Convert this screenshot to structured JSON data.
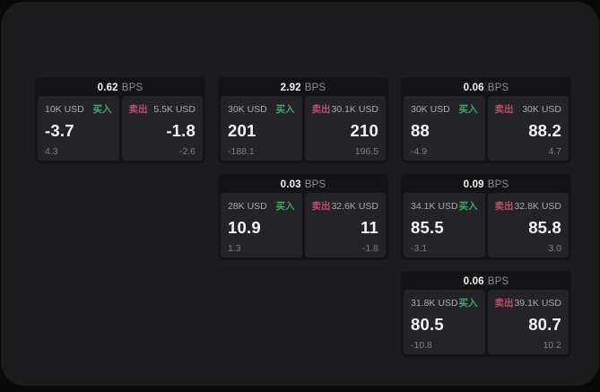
{
  "labels": {
    "buy": "买入",
    "sell": "卖出",
    "bps_unit": "BPS"
  },
  "colors": {
    "buy_green": "#3ca96a",
    "sell_red": "#c04e68",
    "panel_bg": "#1c1c1e",
    "card_bg": "#141416",
    "subpanel_bg": "#242428"
  },
  "cards": [
    {
      "bps": "0.62",
      "col": 1,
      "row": 1,
      "buy": {
        "size": "10K USD",
        "value": "-3.7",
        "sub": "4.3"
      },
      "sell": {
        "size": "5.5K USD",
        "value": "-1.8",
        "sub": "-2.6"
      }
    },
    {
      "bps": "2.92",
      "col": 2,
      "row": 1,
      "buy": {
        "size": "30K USD",
        "value": "201",
        "sub": "-188.1"
      },
      "sell": {
        "size": "30.1K USD",
        "value": "210",
        "sub": "196.5"
      }
    },
    {
      "bps": "0.06",
      "col": 3,
      "row": 1,
      "buy": {
        "size": "30K USD",
        "value": "88",
        "sub": "-4.9"
      },
      "sell": {
        "size": "30K USD",
        "value": "88.2",
        "sub": "4.7"
      }
    },
    {
      "bps": "0.03",
      "col": 2,
      "row": 2,
      "buy": {
        "size": "28K USD",
        "value": "10.9",
        "sub": "1.3"
      },
      "sell": {
        "size": "32.6K USD",
        "value": "11",
        "sub": "-1.8"
      }
    },
    {
      "bps": "0.09",
      "col": 3,
      "row": 2,
      "buy": {
        "size": "34.1K USD",
        "value": "85.5",
        "sub": "-3.1"
      },
      "sell": {
        "size": "32.8K USD",
        "value": "85.8",
        "sub": "3.0"
      }
    },
    {
      "bps": "0.06",
      "col": 3,
      "row": 3,
      "buy": {
        "size": "31.8K USD",
        "value": "80.5",
        "sub": "-10.8"
      },
      "sell": {
        "size": "39.1K USD",
        "value": "80.7",
        "sub": "10.2"
      }
    }
  ]
}
